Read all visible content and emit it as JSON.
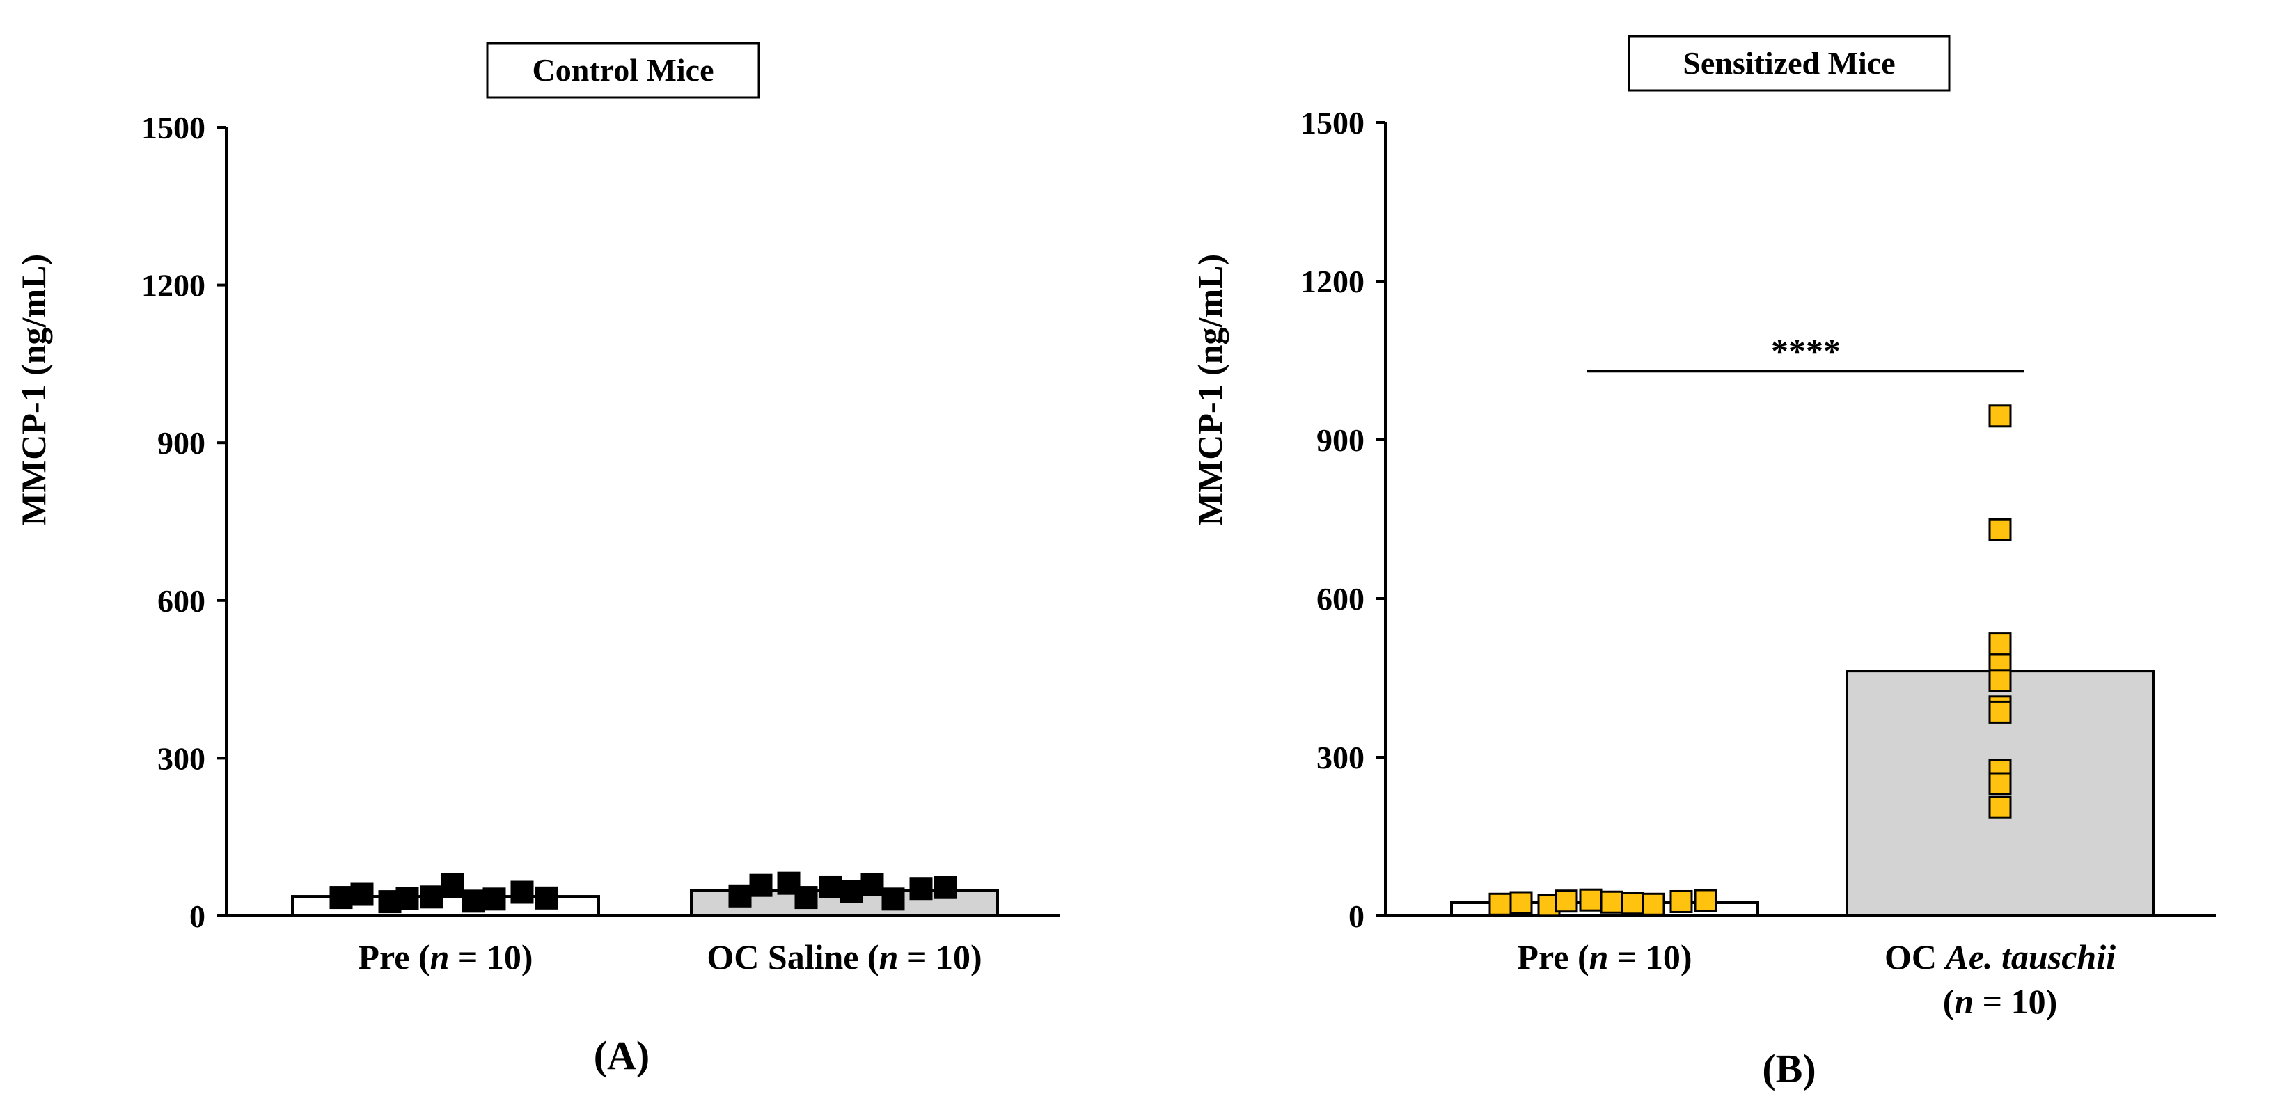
{
  "chart_data": [
    {
      "type": "bar",
      "title": "Control Mice",
      "panel_label": "(A)",
      "ylabel": "MMCP-1 (ng/mL)",
      "ylim": [
        0,
        1500
      ],
      "yticks": [
        0,
        300,
        600,
        900,
        1200,
        1500
      ],
      "yticklabels": [
        "0",
        "300",
        "600",
        "900",
        "1200",
        "1500"
      ],
      "categories": [
        {
          "parts": [
            {
              "text": "Pre (",
              "italic": false
            },
            {
              "text": "n",
              "italic": true
            },
            {
              "text": " = 10)",
              "italic": false
            }
          ],
          "lines": 1
        },
        {
          "parts": [
            {
              "text": "OC Saline (",
              "italic": false
            },
            {
              "text": "n",
              "italic": true
            },
            {
              "text": " = 10)",
              "italic": false
            }
          ],
          "lines": 1
        }
      ],
      "bars": [
        {
          "value": 37,
          "fill": "#ffffff"
        },
        {
          "value": 48,
          "fill": "#d3d3d3"
        }
      ],
      "points": [
        [
          35,
          41,
          27,
          33,
          36,
          60,
          28,
          32,
          45,
          34
        ],
        [
          38,
          58,
          62,
          35,
          55,
          47,
          60,
          32,
          52,
          54
        ]
      ],
      "point_color": "#000000",
      "significance": null
    },
    {
      "type": "bar",
      "title": "Sensitized Mice",
      "panel_label": "(B)",
      "ylabel": "MMCP-1 (ng/mL)",
      "ylim": [
        0,
        1500
      ],
      "yticks": [
        0,
        300,
        600,
        900,
        1200,
        1500
      ],
      "yticklabels": [
        "0",
        "300",
        "600",
        "900",
        "1200",
        "1500"
      ],
      "categories": [
        {
          "parts": [
            {
              "text": "Pre (",
              "italic": false
            },
            {
              "text": "n",
              "italic": true
            },
            {
              "text": " = 10)",
              "italic": false
            }
          ],
          "lines": 1
        },
        {
          "line1": [
            {
              "text": "OC ",
              "italic": false
            },
            {
              "text": "Ae. tauschii",
              "italic": true
            }
          ],
          "line2": [
            {
              "text": "(",
              "italic": false
            },
            {
              "text": "n",
              "italic": true
            },
            {
              "text": " = 10)",
              "italic": false
            }
          ],
          "lines": 2
        }
      ],
      "bars": [
        {
          "value": 25,
          "fill": "#ffffff"
        },
        {
          "value": 463,
          "fill": "#d3d3d3"
        }
      ],
      "points": [
        [
          22,
          25,
          20,
          28,
          30,
          26,
          24,
          22,
          27,
          29
        ],
        [
          945,
          730,
          515,
          475,
          445,
          395,
          385,
          275,
          250,
          205
        ]
      ],
      "point_color": "#ffc20e",
      "significance": {
        "label": "****",
        "value": 1030
      }
    }
  ]
}
